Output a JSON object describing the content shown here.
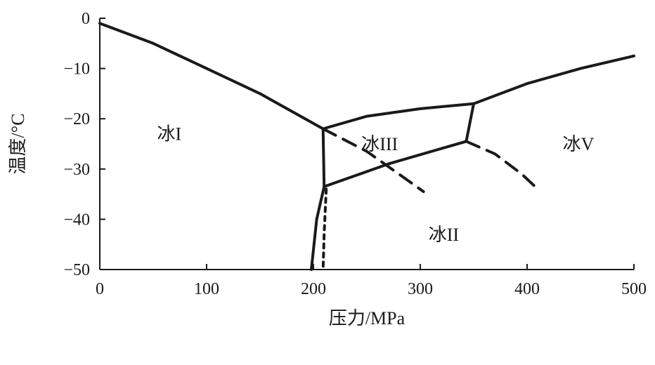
{
  "chart_data": {
    "type": "line",
    "title": "",
    "xlabel": "压力/MPa",
    "ylabel": "温度/°C",
    "xlim": [
      0,
      500
    ],
    "ylim": [
      -50,
      0
    ],
    "xticks": [
      0,
      100,
      200,
      300,
      400,
      500
    ],
    "yticks": [
      0,
      -10,
      -20,
      -30,
      -40,
      -50
    ],
    "xtick_labels": [
      "0",
      "100",
      "200",
      "300",
      "400",
      "500"
    ],
    "ytick_labels": [
      "0",
      "−10",
      "−20",
      "−30",
      "−40",
      "−50"
    ],
    "grid": false,
    "series": [
      {
        "style": "solid",
        "x": [
          0,
          50,
          100,
          150,
          209
        ],
        "y": [
          -1,
          -5,
          -10,
          -15,
          -22
        ]
      },
      {
        "style": "solid",
        "x": [
          209,
          250,
          300,
          350
        ],
        "y": [
          -22,
          -19.5,
          -18,
          -17
        ]
      },
      {
        "style": "solid",
        "x": [
          209,
          210
        ],
        "y": [
          -22,
          -33.5
        ]
      },
      {
        "style": "solid",
        "x": [
          210,
          203,
          198
        ],
        "y": [
          -33.5,
          -40,
          -50
        ]
      },
      {
        "style": "solid",
        "x": [
          210,
          270,
          343
        ],
        "y": [
          -33.5,
          -29,
          -24.5
        ]
      },
      {
        "style": "solid",
        "x": [
          343,
          350
        ],
        "y": [
          -24.5,
          -17
        ]
      },
      {
        "style": "solid",
        "x": [
          350,
          400,
          450,
          500
        ],
        "y": [
          -17,
          -13,
          -10,
          -7.5
        ]
      },
      {
        "style": "dashed",
        "x": [
          343,
          370,
          395,
          410
        ],
        "y": [
          -24.5,
          -27,
          -31,
          -34
        ]
      },
      {
        "style": "dashed",
        "x": [
          209,
          250,
          280,
          303
        ],
        "y": [
          -22,
          -26.5,
          -31,
          -34.5
        ]
      },
      {
        "style": "dotted",
        "x": [
          212,
          210,
          209
        ],
        "y": [
          -34,
          -43,
          -50
        ]
      }
    ],
    "annotations": [
      {
        "text": "冰I",
        "x": 65,
        "y": -23
      },
      {
        "text": "冰III",
        "x": 262,
        "y": -25
      },
      {
        "text": "冰V",
        "x": 448,
        "y": -25
      },
      {
        "text": "冰II",
        "x": 322,
        "y": -43
      }
    ]
  }
}
